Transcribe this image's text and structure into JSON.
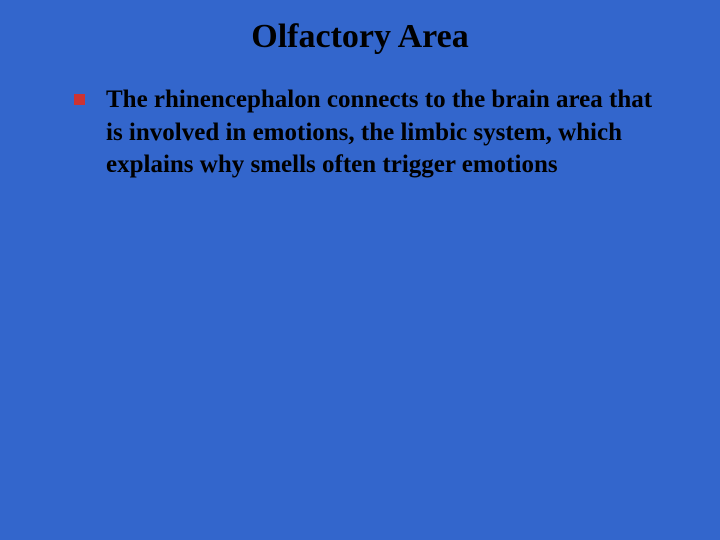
{
  "slide": {
    "background_color": "#3366cc",
    "title": "Olfactory Area",
    "title_color": "#000000",
    "title_fontsize": 34,
    "bullets": [
      {
        "text": "The rhinencephalon connects to the brain area that is involved in emotions, the limbic system, which explains why smells often trigger emotions",
        "marker_color": "#cc3333",
        "text_color": "#000000",
        "fontsize": 25
      }
    ]
  }
}
